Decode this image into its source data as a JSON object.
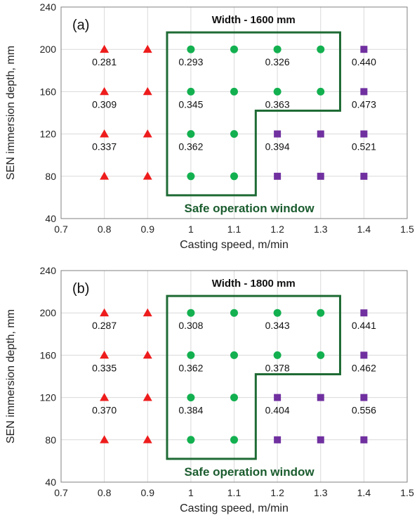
{
  "colors": {
    "unsafe_low": "#ee1c1c",
    "safe": "#13b050",
    "unsafe_high": "#7030a0",
    "window_border": "#1e6b35",
    "grid": "#d9d9d9",
    "frame": "#808080"
  },
  "chart_data": [
    {
      "type": "scatter",
      "panel_label": "(a)",
      "width_label": "Width - 1600 mm",
      "window_label": "Safe operation window",
      "xlabel": "Casting speed, m/min",
      "ylabel": "SEN immersion depth, mm",
      "xlim": [
        0.7,
        1.5
      ],
      "ylim": [
        40,
        240
      ],
      "x_ticks": [
        "0.7",
        "0.8",
        "0.9",
        "1",
        "1.1",
        "1.2",
        "1.3",
        "1.4",
        "1.5"
      ],
      "y_ticks": [
        "40",
        "80",
        "120",
        "160",
        "200",
        "240"
      ],
      "grid": true,
      "points": [
        {
          "x": 0.8,
          "y": 200,
          "marker": "triangle",
          "label": "0.281"
        },
        {
          "x": 0.8,
          "y": 160,
          "marker": "triangle",
          "label": "0.309"
        },
        {
          "x": 0.8,
          "y": 120,
          "marker": "triangle",
          "label": "0.337"
        },
        {
          "x": 0.8,
          "y": 80,
          "marker": "triangle",
          "label": ""
        },
        {
          "x": 0.9,
          "y": 200,
          "marker": "triangle",
          "label": ""
        },
        {
          "x": 0.9,
          "y": 160,
          "marker": "triangle",
          "label": ""
        },
        {
          "x": 0.9,
          "y": 120,
          "marker": "triangle",
          "label": ""
        },
        {
          "x": 0.9,
          "y": 80,
          "marker": "triangle",
          "label": ""
        },
        {
          "x": 1.0,
          "y": 200,
          "marker": "circle",
          "label": "0.293"
        },
        {
          "x": 1.0,
          "y": 160,
          "marker": "circle",
          "label": "0.345"
        },
        {
          "x": 1.0,
          "y": 120,
          "marker": "circle",
          "label": "0.362"
        },
        {
          "x": 1.0,
          "y": 80,
          "marker": "circle",
          "label": ""
        },
        {
          "x": 1.1,
          "y": 200,
          "marker": "circle",
          "label": ""
        },
        {
          "x": 1.1,
          "y": 160,
          "marker": "circle",
          "label": ""
        },
        {
          "x": 1.1,
          "y": 120,
          "marker": "circle",
          "label": ""
        },
        {
          "x": 1.1,
          "y": 80,
          "marker": "circle",
          "label": ""
        },
        {
          "x": 1.2,
          "y": 200,
          "marker": "circle",
          "label": "0.326"
        },
        {
          "x": 1.2,
          "y": 160,
          "marker": "circle",
          "label": "0.363"
        },
        {
          "x": 1.2,
          "y": 120,
          "marker": "square",
          "label": "0.394"
        },
        {
          "x": 1.2,
          "y": 80,
          "marker": "square",
          "label": ""
        },
        {
          "x": 1.3,
          "y": 200,
          "marker": "circle",
          "label": ""
        },
        {
          "x": 1.3,
          "y": 160,
          "marker": "circle",
          "label": ""
        },
        {
          "x": 1.3,
          "y": 120,
          "marker": "square",
          "label": ""
        },
        {
          "x": 1.3,
          "y": 80,
          "marker": "square",
          "label": ""
        },
        {
          "x": 1.4,
          "y": 200,
          "marker": "square",
          "label": "0.440"
        },
        {
          "x": 1.4,
          "y": 160,
          "marker": "square",
          "label": "0.473"
        },
        {
          "x": 1.4,
          "y": 120,
          "marker": "square",
          "label": "0.521"
        },
        {
          "x": 1.4,
          "y": 80,
          "marker": "square",
          "label": ""
        }
      ],
      "safe_window": [
        [
          0.945,
          216
        ],
        [
          1.345,
          216
        ],
        [
          1.345,
          142
        ],
        [
          1.15,
          142
        ],
        [
          1.15,
          62
        ],
        [
          0.945,
          62
        ]
      ]
    },
    {
      "type": "scatter",
      "panel_label": "(b)",
      "width_label": "Width - 1800 mm",
      "window_label": "Safe operation window",
      "xlabel": "Casting speed, m/min",
      "ylabel": "SEN immersion depth, mm",
      "xlim": [
        0.7,
        1.5
      ],
      "ylim": [
        40,
        240
      ],
      "x_ticks": [
        "0.7",
        "0.8",
        "0.9",
        "1",
        "1.1",
        "1.2",
        "1.3",
        "1.4",
        "1.5"
      ],
      "y_ticks": [
        "40",
        "80",
        "120",
        "160",
        "200",
        "240"
      ],
      "grid": true,
      "points": [
        {
          "x": 0.8,
          "y": 200,
          "marker": "triangle",
          "label": "0.287"
        },
        {
          "x": 0.8,
          "y": 160,
          "marker": "triangle",
          "label": "0.335"
        },
        {
          "x": 0.8,
          "y": 120,
          "marker": "triangle",
          "label": "0.370"
        },
        {
          "x": 0.8,
          "y": 80,
          "marker": "triangle",
          "label": ""
        },
        {
          "x": 0.9,
          "y": 200,
          "marker": "triangle",
          "label": ""
        },
        {
          "x": 0.9,
          "y": 160,
          "marker": "triangle",
          "label": ""
        },
        {
          "x": 0.9,
          "y": 120,
          "marker": "triangle",
          "label": ""
        },
        {
          "x": 0.9,
          "y": 80,
          "marker": "triangle",
          "label": ""
        },
        {
          "x": 1.0,
          "y": 200,
          "marker": "circle",
          "label": "0.308"
        },
        {
          "x": 1.0,
          "y": 160,
          "marker": "circle",
          "label": "0.362"
        },
        {
          "x": 1.0,
          "y": 120,
          "marker": "circle",
          "label": "0.384"
        },
        {
          "x": 1.0,
          "y": 80,
          "marker": "circle",
          "label": ""
        },
        {
          "x": 1.1,
          "y": 200,
          "marker": "circle",
          "label": ""
        },
        {
          "x": 1.1,
          "y": 160,
          "marker": "circle",
          "label": ""
        },
        {
          "x": 1.1,
          "y": 120,
          "marker": "circle",
          "label": ""
        },
        {
          "x": 1.1,
          "y": 80,
          "marker": "circle",
          "label": ""
        },
        {
          "x": 1.2,
          "y": 200,
          "marker": "circle",
          "label": "0.343"
        },
        {
          "x": 1.2,
          "y": 160,
          "marker": "circle",
          "label": "0.378"
        },
        {
          "x": 1.2,
          "y": 120,
          "marker": "square",
          "label": "0.404"
        },
        {
          "x": 1.2,
          "y": 80,
          "marker": "square",
          "label": ""
        },
        {
          "x": 1.3,
          "y": 200,
          "marker": "circle",
          "label": ""
        },
        {
          "x": 1.3,
          "y": 160,
          "marker": "circle",
          "label": ""
        },
        {
          "x": 1.3,
          "y": 120,
          "marker": "square",
          "label": ""
        },
        {
          "x": 1.3,
          "y": 80,
          "marker": "square",
          "label": ""
        },
        {
          "x": 1.4,
          "y": 200,
          "marker": "square",
          "label": "0.441"
        },
        {
          "x": 1.4,
          "y": 160,
          "marker": "square",
          "label": "0.462"
        },
        {
          "x": 1.4,
          "y": 120,
          "marker": "square",
          "label": "0.556"
        },
        {
          "x": 1.4,
          "y": 80,
          "marker": "square",
          "label": ""
        }
      ],
      "safe_window": [
        [
          0.945,
          216
        ],
        [
          1.345,
          216
        ],
        [
          1.345,
          142
        ],
        [
          1.15,
          142
        ],
        [
          1.15,
          62
        ],
        [
          0.945,
          62
        ]
      ]
    }
  ]
}
